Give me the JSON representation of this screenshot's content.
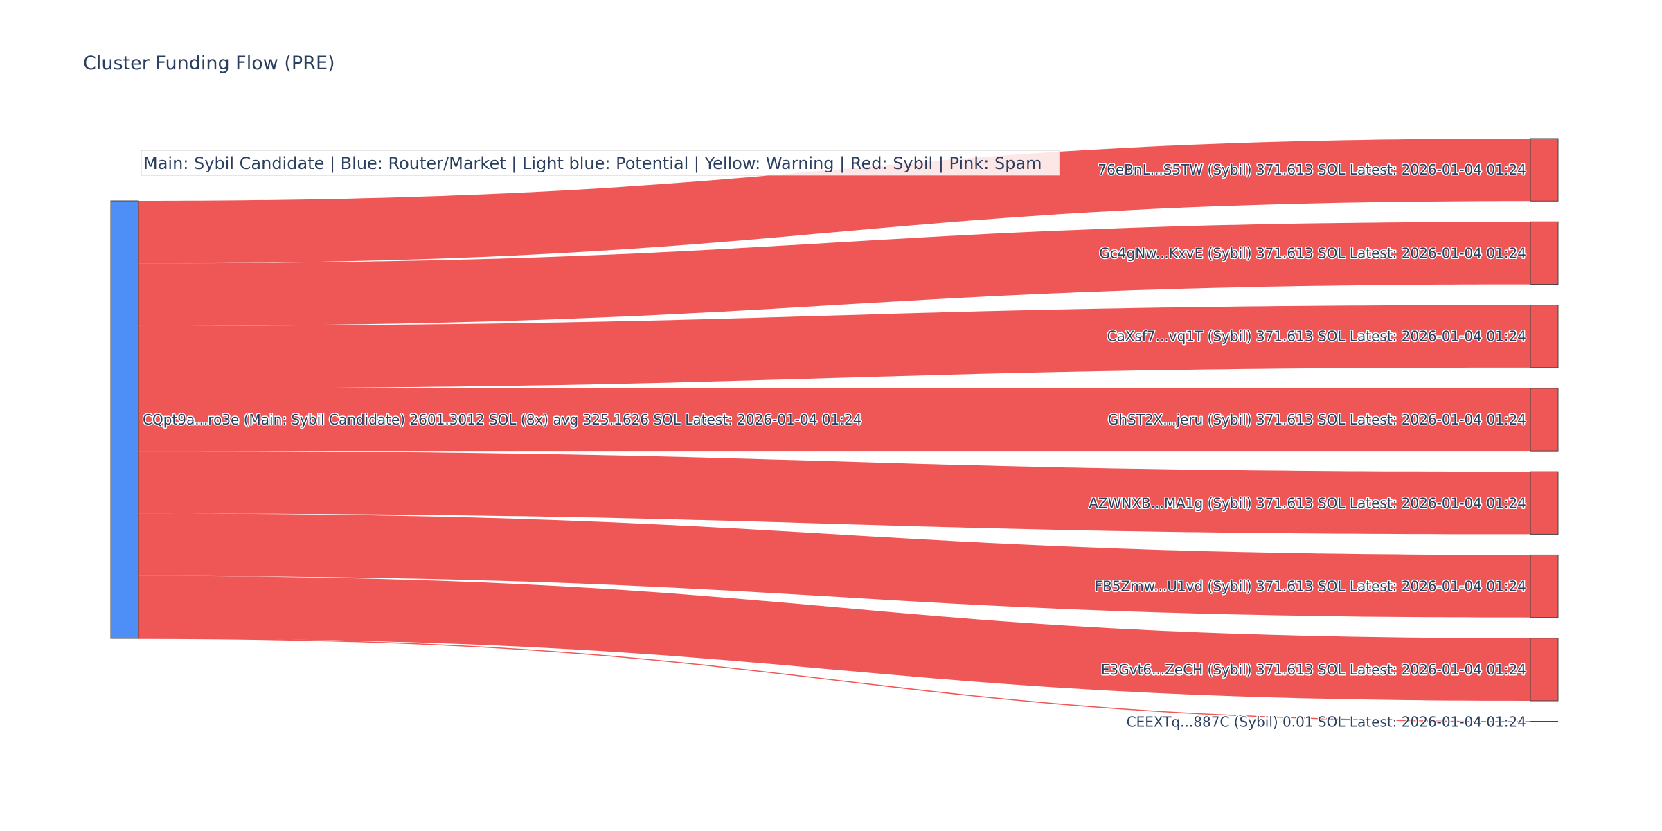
{
  "chart_data": {
    "type": "sankey",
    "title": "Cluster Funding Flow (PRE)",
    "legend_note": "Main: Sybil Candidate  |  Blue: Router/Market | Light blue: Potential | Yellow: Warning | Red: Sybil | Pink: Spam",
    "colors": {
      "source_node": "#4d8ff7",
      "target_node": "#ef5656",
      "link": "#ef5656",
      "node_border": "#444444",
      "text": "#2a3f5f"
    },
    "source": {
      "label": "CQpt9a...ro3e (Main: Sybil Candidate) 2601.3012 SOL (8x) avg 325.1626 SOL Latest: 2026-01-04 01:24",
      "value": 2601.3012
    },
    "targets": [
      {
        "label": "76eBnL...S5TW (Sybil) 371.613 SOL Latest: 2026-01-04 01:24",
        "value": 371.613
      },
      {
        "label": "Gc4gNw...KxvE (Sybil) 371.613 SOL Latest: 2026-01-04 01:24",
        "value": 371.613
      },
      {
        "label": "CaXsf7...vq1T (Sybil) 371.613 SOL Latest: 2026-01-04 01:24",
        "value": 371.613
      },
      {
        "label": "GhST2X...jeru (Sybil) 371.613 SOL Latest: 2026-01-04 01:24",
        "value": 371.613
      },
      {
        "label": "AZWNXB...MA1g (Sybil) 371.613 SOL Latest: 2026-01-04 01:24",
        "value": 371.613
      },
      {
        "label": "FB5Zmw...U1vd (Sybil) 371.613 SOL Latest: 2026-01-04 01:24",
        "value": 371.613
      },
      {
        "label": "E3Gvt6...ZeCH (Sybil) 371.613 SOL Latest: 2026-01-04 01:24",
        "value": 371.613
      },
      {
        "label": "CEEXTq...887C (Sybil) 0.01 SOL Latest: 2026-01-04 01:24",
        "value": 0.01
      }
    ]
  }
}
